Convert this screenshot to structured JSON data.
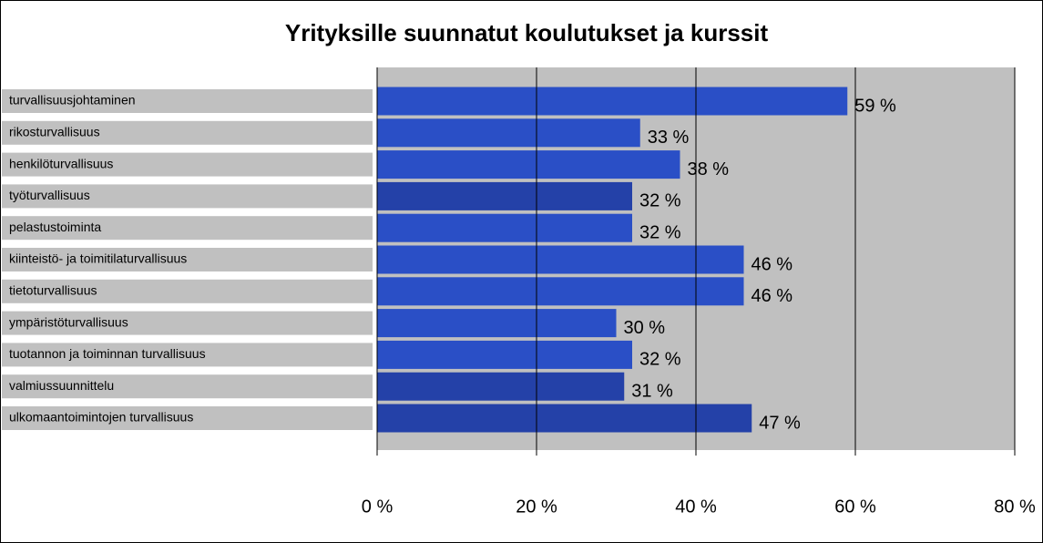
{
  "chart_data": {
    "type": "bar",
    "orientation": "horizontal",
    "title": "Yrityksille suunnatut koulutukset ja kurssit",
    "categories": [
      "turvallisuusjohtaminen",
      "rikosturvallisuus",
      "henkilöturvallisuus",
      "työturvallisuus",
      "pelastustoiminta",
      "kiinteistö- ja toimitilaturvallisuus",
      "tietoturvallisuus",
      "ympäristöturvallisuus",
      "tuotannon ja toiminnan turvallisuus",
      "valmiussuunnittelu",
      "ulkomaantoimintojen turvallisuus"
    ],
    "values": [
      59,
      33,
      38,
      32,
      32,
      46,
      46,
      30,
      32,
      31,
      47
    ],
    "value_labels": [
      "59 %",
      "33 %",
      "38 %",
      "32 %",
      "32 %",
      "46 %",
      "46 %",
      "30 %",
      "32 %",
      "31 %",
      "47 %"
    ],
    "colors": [
      "#2a4fc6",
      "#2a4fc6",
      "#2a4fc6",
      "#2441a8",
      "#2a4fc6",
      "#2a4fc6",
      "#2a4fc6",
      "#2a4fc6",
      "#2a4fc6",
      "#2441a8",
      "#2441a8"
    ],
    "xlim": [
      0,
      80
    ],
    "xticks": [
      {
        "value": 0,
        "label": "0 %"
      },
      {
        "value": 20,
        "label": "20 %"
      },
      {
        "value": 40,
        "label": "40 %"
      },
      {
        "value": 60,
        "label": "60 %"
      },
      {
        "value": 80,
        "label": "80 %"
      }
    ],
    "grid": true
  }
}
